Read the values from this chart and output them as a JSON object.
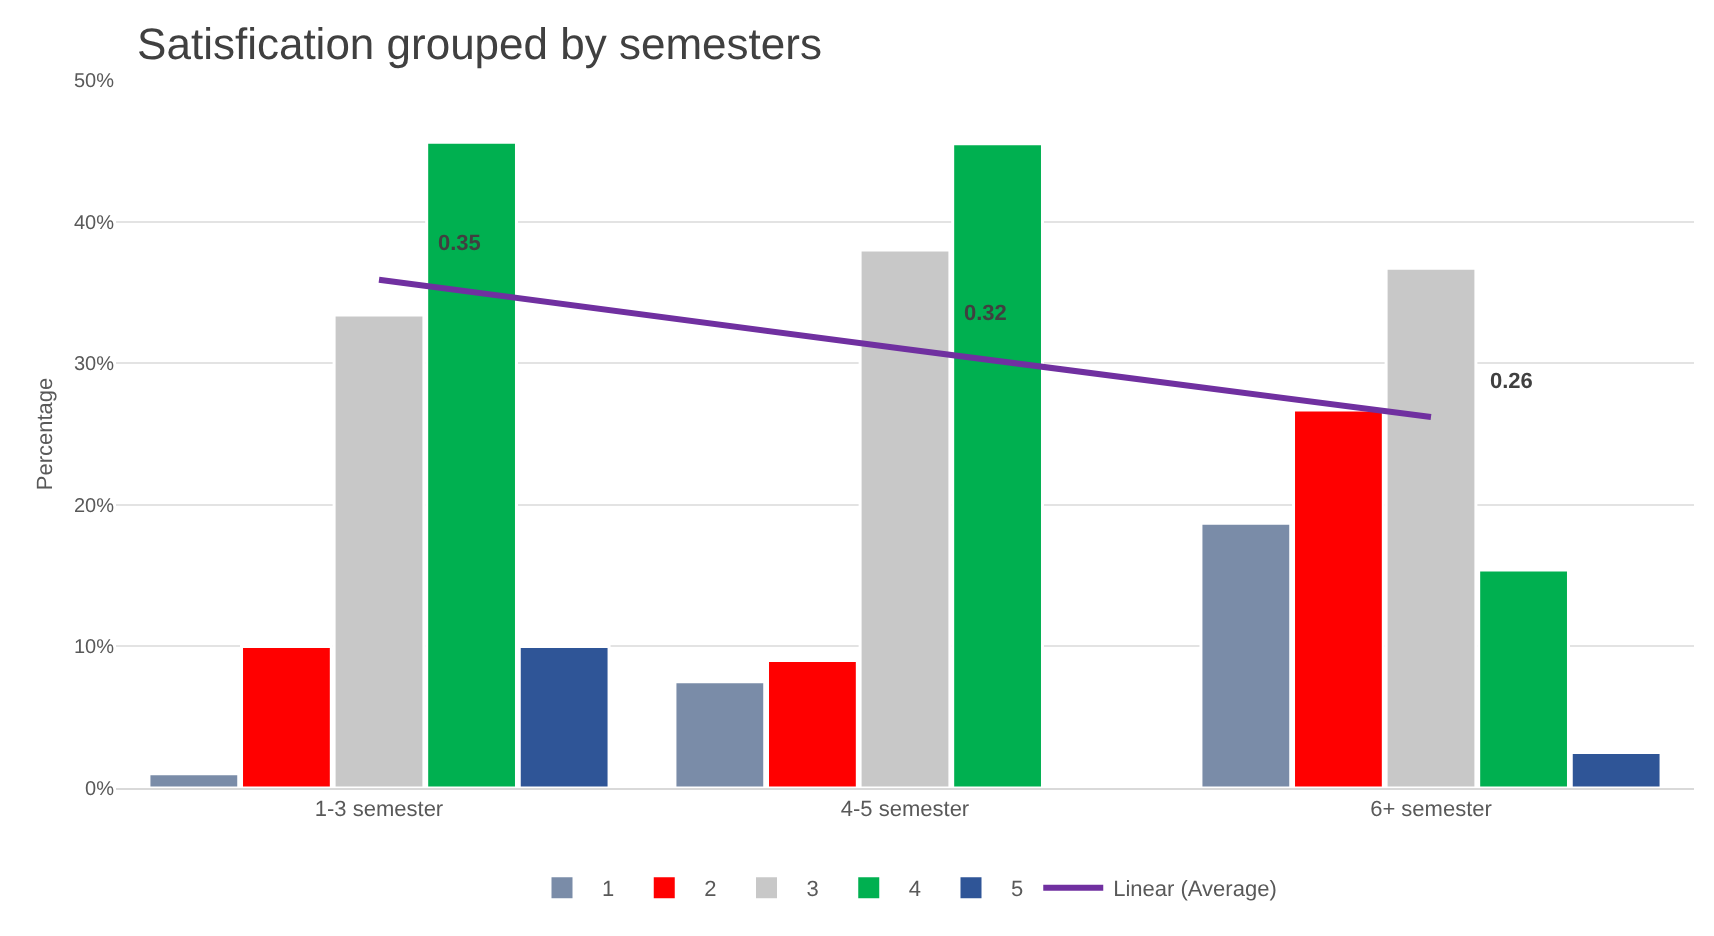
{
  "chart_data": {
    "type": "bar",
    "title": "Satisfication grouped by semesters",
    "ylabel": "Percentage",
    "categories": [
      "1-3 semester",
      "4-5 semester",
      "6+ semester"
    ],
    "series": [
      {
        "name": "1",
        "color": "#7a8ca8",
        "values": [
          1.0,
          7.5,
          18.7
        ]
      },
      {
        "name": "2",
        "color": "#ff0000",
        "values": [
          10.0,
          9.0,
          26.7
        ]
      },
      {
        "name": "3",
        "color": "#c8c8c8",
        "values": [
          33.4,
          38.0,
          36.7
        ]
      },
      {
        "name": "4",
        "color": "#00b050",
        "values": [
          45.6,
          45.5,
          15.4
        ]
      },
      {
        "name": "5",
        "color": "#2f5597",
        "values": [
          10.0,
          null,
          2.5
        ]
      },
      {
        "name": "Linear (Average)",
        "type": "line",
        "color": "#7030a0",
        "values": [
          35.9,
          31.0,
          26.2
        ]
      }
    ],
    "annotations": [
      "0.35",
      "0.32",
      "0.26"
    ],
    "ylim": [
      0,
      50
    ],
    "yticks": [
      {
        "value": 0,
        "label": "0%"
      },
      {
        "value": 10,
        "label": "10%"
      },
      {
        "value": 20,
        "label": "20%"
      },
      {
        "value": 30,
        "label": "30%"
      },
      {
        "value": 40,
        "label": "40%"
      },
      {
        "value": 50,
        "label": "50%"
      }
    ],
    "grid": "y",
    "legend": "bottom"
  }
}
